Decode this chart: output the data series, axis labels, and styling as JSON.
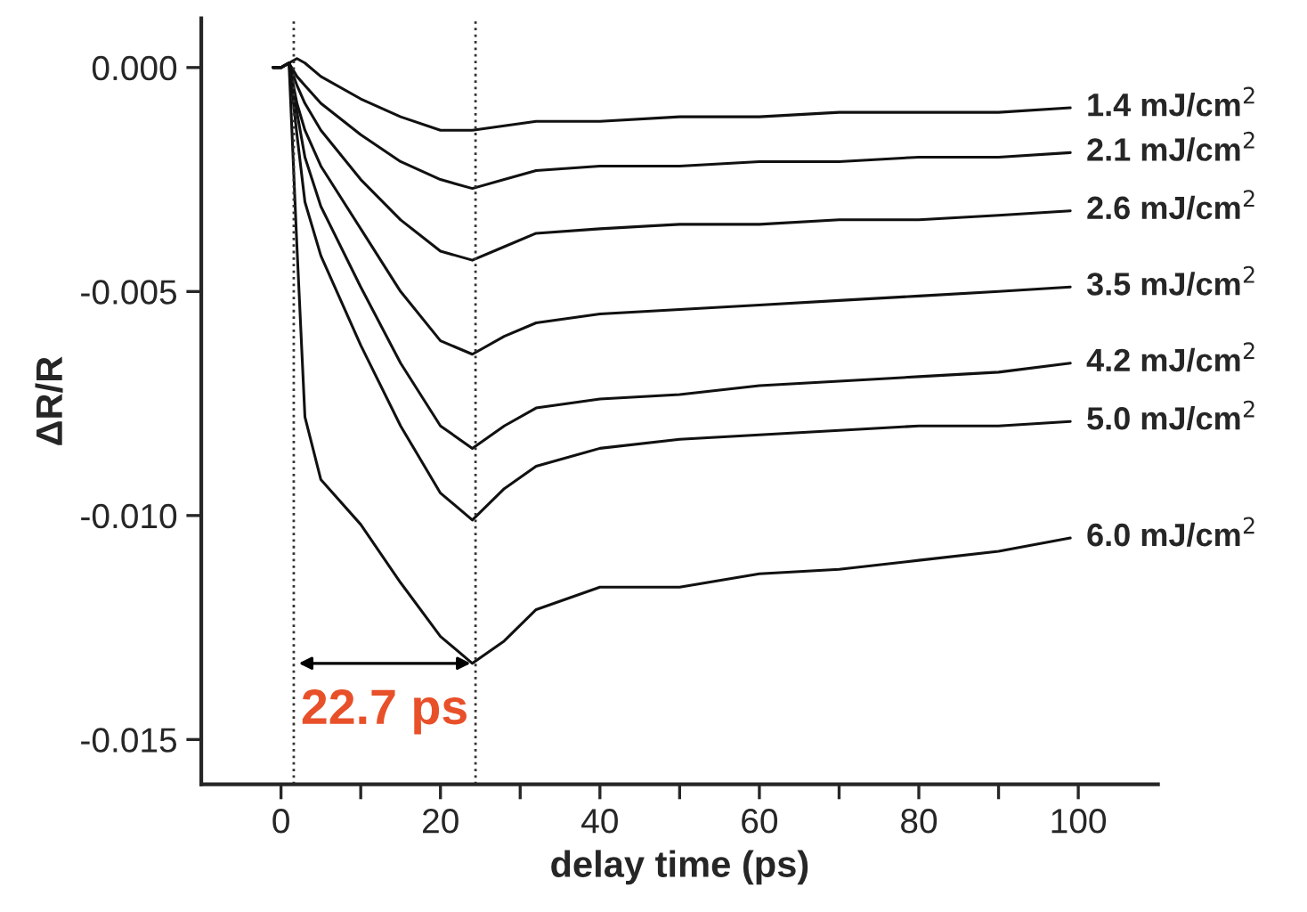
{
  "chart_data": {
    "type": "line",
    "xlabel": "delay time (ps)",
    "ylabel": "ΔR/R",
    "x": [
      -1,
      0,
      1,
      2,
      3,
      5,
      10,
      15,
      20,
      24,
      28,
      32,
      40,
      50,
      60,
      70,
      80,
      90,
      99
    ],
    "series": [
      {
        "name": "1.4 mJ/cm$^{2}$",
        "color": "#111111",
        "values": [
          0,
          0,
          0.0001,
          0.0002,
          0.0001,
          -0.0002,
          -0.0007,
          -0.0011,
          -0.0014,
          -0.0014,
          -0.0013,
          -0.0012,
          -0.0012,
          -0.0011,
          -0.0011,
          -0.001,
          -0.001,
          -0.001,
          -0.0009
        ]
      },
      {
        "name": "2.1 mJ/cm$^{2}$",
        "color": "#111111",
        "values": [
          0,
          0,
          0.0001,
          -0.0002,
          -0.0004,
          -0.0008,
          -0.0015,
          -0.0021,
          -0.0025,
          -0.0027,
          -0.0025,
          -0.0023,
          -0.0022,
          -0.0022,
          -0.0021,
          -0.0021,
          -0.002,
          -0.002,
          -0.0019
        ]
      },
      {
        "name": "2.6 mJ/cm$^{2}$",
        "color": "#111111",
        "values": [
          0,
          0,
          0.0001,
          -0.0004,
          -0.0008,
          -0.0014,
          -0.0025,
          -0.0034,
          -0.0041,
          -0.0043,
          -0.004,
          -0.0037,
          -0.0036,
          -0.0035,
          -0.0035,
          -0.0034,
          -0.0034,
          -0.0033,
          -0.0032
        ]
      },
      {
        "name": "3.5 mJ/cm$^{2}$",
        "color": "#111111",
        "values": [
          0,
          0,
          0.0001,
          -0.0008,
          -0.0014,
          -0.0022,
          -0.0036,
          -0.005,
          -0.0061,
          -0.0064,
          -0.006,
          -0.0057,
          -0.0055,
          -0.0054,
          -0.0053,
          -0.0052,
          -0.0051,
          -0.005,
          -0.0049
        ]
      },
      {
        "name": "4.2 mJ/cm$^{2}$",
        "color": "#111111",
        "values": [
          0,
          0,
          0.0001,
          -0.001,
          -0.002,
          -0.0031,
          -0.0049,
          -0.0066,
          -0.008,
          -0.0085,
          -0.008,
          -0.0076,
          -0.0074,
          -0.0073,
          -0.0071,
          -0.007,
          -0.0069,
          -0.0068,
          -0.0066
        ]
      },
      {
        "name": "5.0 mJ/cm$^{2}$",
        "color": "#111111",
        "values": [
          0,
          0,
          0.0001,
          -0.0015,
          -0.003,
          -0.0042,
          -0.0062,
          -0.008,
          -0.0095,
          -0.0101,
          -0.0094,
          -0.0089,
          -0.0085,
          -0.0083,
          -0.0082,
          -0.0081,
          -0.008,
          -0.008,
          -0.0079
        ]
      },
      {
        "name": "6.0 mJ/cm$^{2}$",
        "color": "#111111",
        "values": [
          0,
          0,
          0.0001,
          -0.004,
          -0.0078,
          -0.0092,
          -0.0102,
          -0.0115,
          -0.0127,
          -0.0133,
          -0.0128,
          -0.0121,
          -0.0116,
          -0.0116,
          -0.0113,
          -0.0112,
          -0.011,
          -0.0108,
          -0.0105
        ]
      }
    ],
    "xlim": [
      -10,
      110
    ],
    "xticks": [
      0,
      {
        "value": 10,
        "label": null
      },
      20,
      {
        "value": 30,
        "label": null
      },
      40,
      {
        "value": 50,
        "label": null
      },
      60,
      {
        "value": 70,
        "label": null
      },
      80,
      {
        "value": 90,
        "label": null
      },
      100
    ],
    "ylim": [
      -0.016,
      0.0011
    ],
    "yticks": [
      {
        "value": 0,
        "label": "0.000"
      },
      {
        "value": -0.005,
        "label": "-0.005"
      },
      {
        "value": -0.01,
        "label": "-0.010"
      },
      {
        "value": -0.015,
        "label": "-0.015"
      }
    ],
    "ref_lines": [
      {
        "axis": "x",
        "value": 1.6,
        "label": null,
        "color": "#333333",
        "line_style": "dotted"
      },
      {
        "axis": "x",
        "value": 24.4,
        "label": null,
        "color": "#333333",
        "line_style": "dotted"
      }
    ],
    "annotations": [
      "22.7 ps"
    ],
    "grid": false,
    "legend": false,
    "line_style": "solid",
    "marker": "none"
  }
}
